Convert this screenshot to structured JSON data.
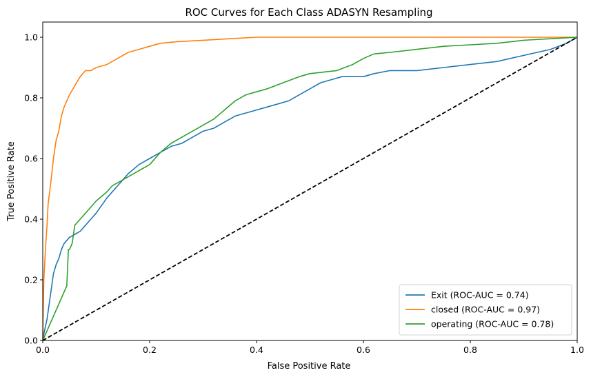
{
  "chart_data": {
    "type": "line",
    "title": "ROC Curves for Each Class ADASYN Resampling",
    "xlabel": "False Positive Rate",
    "ylabel": "True Positive Rate",
    "xlim": [
      0,
      1
    ],
    "ylim": [
      0,
      1.05
    ],
    "xticks": [
      "0.0",
      "0.2",
      "0.4",
      "0.6",
      "0.8",
      "1.0"
    ],
    "yticks": [
      "0.0",
      "0.2",
      "0.4",
      "0.6",
      "0.8",
      "1.0"
    ],
    "grid": false,
    "legend_position": "bottom-right",
    "series": [
      {
        "name": "Exit (ROC-AUC = 0.74)",
        "color": "#1f77b4",
        "x": [
          0,
          0.003,
          0.008,
          0.012,
          0.016,
          0.02,
          0.025,
          0.03,
          0.035,
          0.04,
          0.045,
          0.05,
          0.06,
          0.07,
          0.08,
          0.09,
          0.1,
          0.12,
          0.14,
          0.16,
          0.18,
          0.2,
          0.22,
          0.24,
          0.26,
          0.28,
          0.3,
          0.32,
          0.34,
          0.36,
          0.38,
          0.4,
          0.42,
          0.44,
          0.46,
          0.48,
          0.5,
          0.52,
          0.54,
          0.56,
          0.6,
          0.62,
          0.65,
          0.7,
          0.75,
          0.8,
          0.85,
          0.9,
          0.95,
          0.98,
          1.0
        ],
        "y": [
          0,
          0.03,
          0.07,
          0.12,
          0.17,
          0.22,
          0.25,
          0.27,
          0.3,
          0.32,
          0.33,
          0.34,
          0.35,
          0.36,
          0.38,
          0.4,
          0.42,
          0.47,
          0.51,
          0.55,
          0.58,
          0.6,
          0.62,
          0.64,
          0.65,
          0.67,
          0.69,
          0.7,
          0.72,
          0.74,
          0.75,
          0.76,
          0.77,
          0.78,
          0.79,
          0.81,
          0.83,
          0.85,
          0.86,
          0.87,
          0.87,
          0.88,
          0.89,
          0.89,
          0.9,
          0.91,
          0.92,
          0.94,
          0.96,
          0.98,
          1.0
        ]
      },
      {
        "name": "closed (ROC-AUC = 0.97)",
        "color": "#ff7f0e",
        "x": [
          0,
          0.002,
          0.005,
          0.008,
          0.01,
          0.015,
          0.02,
          0.025,
          0.03,
          0.035,
          0.04,
          0.05,
          0.06,
          0.07,
          0.08,
          0.09,
          0.1,
          0.12,
          0.14,
          0.16,
          0.18,
          0.2,
          0.22,
          0.25,
          0.3,
          0.35,
          0.4,
          0.5,
          0.6,
          0.7,
          0.8,
          0.9,
          1.0
        ],
        "y": [
          0,
          0.2,
          0.3,
          0.38,
          0.45,
          0.52,
          0.6,
          0.66,
          0.69,
          0.74,
          0.77,
          0.81,
          0.84,
          0.87,
          0.89,
          0.89,
          0.9,
          0.91,
          0.93,
          0.95,
          0.96,
          0.97,
          0.98,
          0.985,
          0.99,
          0.995,
          1.0,
          1.0,
          1.0,
          1.0,
          1.0,
          1.0,
          1.0
        ]
      },
      {
        "name": "operating (ROC-AUC = 0.78)",
        "color": "#2ca02c",
        "x": [
          0,
          0.005,
          0.01,
          0.015,
          0.02,
          0.025,
          0.03,
          0.035,
          0.04,
          0.045,
          0.048,
          0.05,
          0.055,
          0.06,
          0.065,
          0.07,
          0.08,
          0.09,
          0.1,
          0.12,
          0.13,
          0.14,
          0.16,
          0.18,
          0.2,
          0.22,
          0.24,
          0.26,
          0.28,
          0.3,
          0.32,
          0.34,
          0.36,
          0.38,
          0.4,
          0.42,
          0.45,
          0.48,
          0.5,
          0.55,
          0.58,
          0.6,
          0.62,
          0.65,
          0.7,
          0.75,
          0.8,
          0.85,
          0.9,
          0.95,
          1.0
        ],
        "y": [
          0,
          0.02,
          0.04,
          0.06,
          0.08,
          0.1,
          0.12,
          0.14,
          0.16,
          0.18,
          0.3,
          0.3,
          0.32,
          0.38,
          0.39,
          0.4,
          0.42,
          0.44,
          0.46,
          0.49,
          0.51,
          0.52,
          0.54,
          0.56,
          0.58,
          0.62,
          0.65,
          0.67,
          0.69,
          0.71,
          0.73,
          0.76,
          0.79,
          0.81,
          0.82,
          0.83,
          0.85,
          0.87,
          0.88,
          0.89,
          0.91,
          0.93,
          0.945,
          0.95,
          0.96,
          0.97,
          0.975,
          0.98,
          0.99,
          0.995,
          1.0
        ]
      },
      {
        "name": "",
        "color": "#000000",
        "style": "dashed",
        "x": [
          0,
          1
        ],
        "y": [
          0,
          1
        ]
      }
    ]
  }
}
